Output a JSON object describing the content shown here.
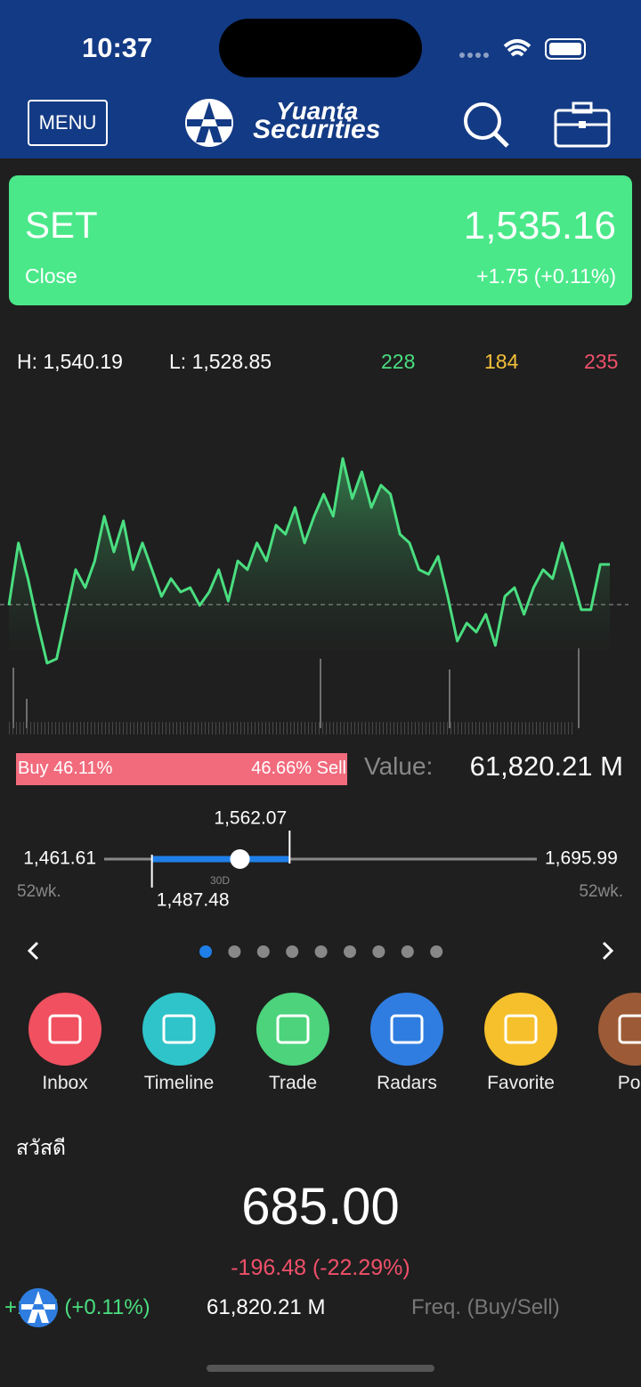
{
  "status_bar": {
    "time": "10:37"
  },
  "header": {
    "menu": "MENU",
    "brand_top": "Yuanta",
    "brand_bottom": "Securities"
  },
  "index_card": {
    "name": "SET",
    "value": "1,535.16",
    "status": "Close",
    "change": "+1.75 (+0.11%)"
  },
  "stats": {
    "high": "H: 1,540.19",
    "low": "L: 1,528.85",
    "advances": "228",
    "unchanged": "184",
    "declines": "235"
  },
  "intraday": {
    "values": [
      1532.16,
      1535.57,
      1533.62,
      1531.19,
      1529.0,
      1529.24,
      1531.67,
      1534.11,
      1533.13,
      1534.59,
      1537.03,
      1535.08,
      1536.78,
      1534.11,
      1535.57,
      1534.11,
      1532.65,
      1533.62,
      1532.89,
      1533.13,
      1532.16,
      1532.89,
      1534.11,
      1532.4,
      1534.59,
      1534.11,
      1535.57,
      1534.59,
      1536.54,
      1536.05,
      1537.51,
      1535.57,
      1537.03,
      1538.24,
      1537.03,
      1540.19,
      1538.0,
      1539.46,
      1537.51,
      1538.73,
      1538.24,
      1536.05,
      1535.57,
      1534.11,
      1533.86,
      1534.84,
      1532.65,
      1530.21,
      1531.19,
      1530.7,
      1531.67,
      1529.97,
      1532.65,
      1533.13,
      1531.67,
      1533.13,
      1534.11,
      1533.62,
      1535.57,
      1533.86,
      1531.92,
      1531.92,
      1534.4,
      1534.4
    ],
    "ylim": [
      1528.85,
      1540.19
    ],
    "reference": 1532.2,
    "color": "#4ade80"
  },
  "flow": {
    "buy_label": "Buy 46.11%",
    "buy": 46.11,
    "sell_label": "46.66% Sell",
    "sell": 46.66,
    "value_label": "Value:",
    "value": "61,820.21 M"
  },
  "range": {
    "low_52wk": {
      "value": 1461.61,
      "label": "1,461.61"
    },
    "high_52wk": {
      "value": 1695.99,
      "label": "1,695.99"
    },
    "low_30d": {
      "value": 1487.48,
      "label": "1,487.48"
    },
    "high_30d": {
      "value": 1562.07,
      "label": "1,562.07"
    },
    "current": 1535.16,
    "period": "30D",
    "left_caption": "52wk.",
    "right_caption": "52wk."
  },
  "pager": {
    "count": 9,
    "active": 0
  },
  "shortcuts": [
    {
      "label": "Inbox",
      "color": "#f0505f"
    },
    {
      "label": "Timeline",
      "color": "#2ec4c9"
    },
    {
      "label": "Trade",
      "color": "#4cd37c"
    },
    {
      "label": "Radars",
      "color": "#2f7de0"
    },
    {
      "label": "Favorite",
      "color": "#f6c02c"
    },
    {
      "label": "Port",
      "color": "#9c5b36"
    }
  ],
  "greeting": "สวัสดี",
  "portfolio": {
    "value": "685.00",
    "change": "-196.48 (-22.29%)"
  },
  "ticker": {
    "change": "+1.75 (+0.11%)",
    "value": "61,820.21 M",
    "freq": "Freq. (Buy/Sell)"
  }
}
